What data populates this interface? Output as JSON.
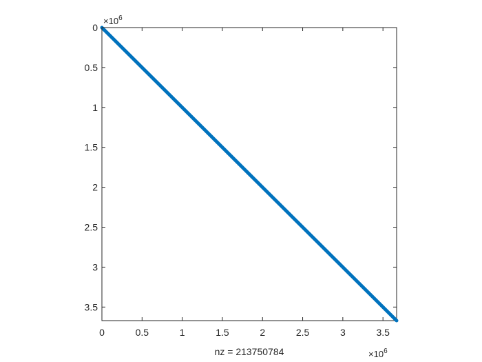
{
  "chart_data": {
    "type": "scatter",
    "title": "",
    "xlabel": "nz = 213750784",
    "ylabel": "",
    "xlim": [
      0,
      3670016
    ],
    "ylim": [
      0,
      3670016
    ],
    "y_reversed": true,
    "grid": false,
    "legend": "none",
    "x_exponent": "6",
    "y_exponent": "6",
    "x_ticks": [
      0,
      0.5,
      1,
      1.5,
      2,
      2.5,
      3,
      3.5
    ],
    "y_ticks": [
      0,
      0.5,
      1,
      1.5,
      2,
      2.5,
      3,
      3.5
    ],
    "x_tick_labels": [
      "0",
      "0.5",
      "1",
      "1.5",
      "2",
      "2.5",
      "3",
      "3.5"
    ],
    "y_tick_labels": [
      "0",
      "0.5",
      "1",
      "1.5",
      "2",
      "2.5",
      "3",
      "3.5"
    ],
    "series": [
      {
        "description": "sparsity pattern concentrated along main diagonal",
        "x": [
          0,
          3670016
        ],
        "y": [
          0,
          3670016
        ]
      }
    ],
    "colors": {
      "marker": "#0072BD",
      "axes": "#262626"
    }
  }
}
